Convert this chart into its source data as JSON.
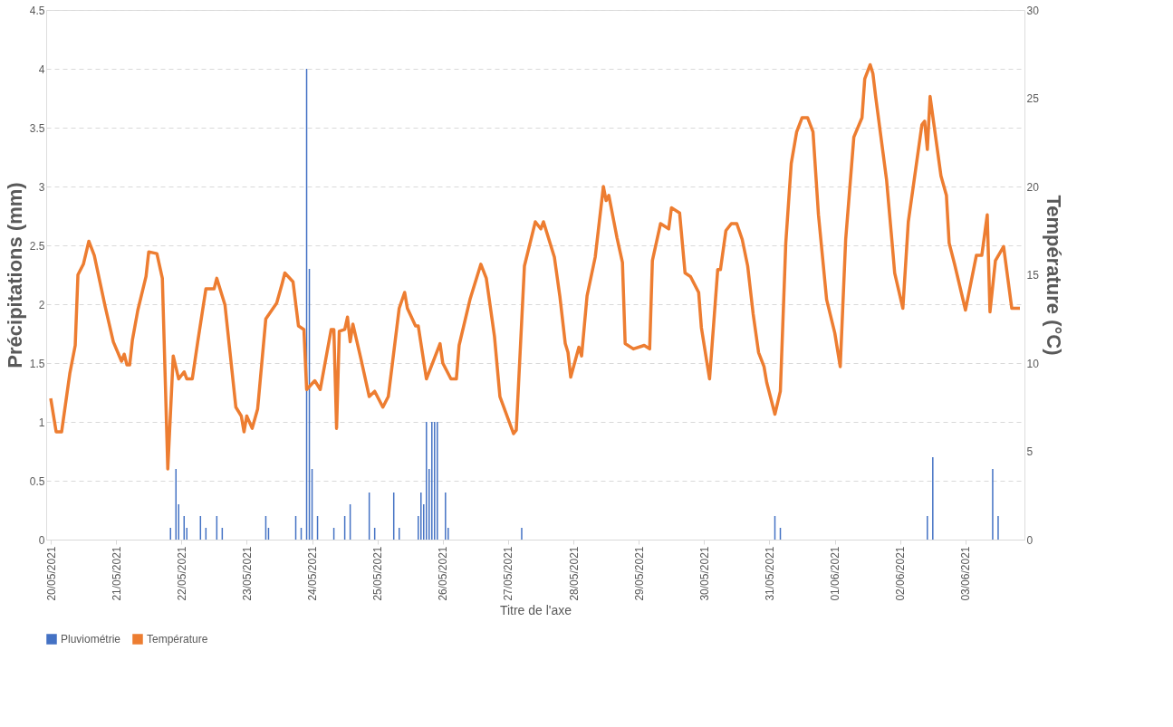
{
  "chart_data": {
    "type": "bar",
    "xlabel": "Titre de l'axe",
    "ylabel": "Précipitations (mm)",
    "y2label": "Température (°C)",
    "xlim": [
      "2021-05-20T00:00",
      "2021-06-03T20:00"
    ],
    "xticks": [
      {
        "value": "2021-05-20",
        "label": "20/05/2021"
      },
      {
        "value": "2021-05-21",
        "label": "21/05/2021"
      },
      {
        "value": "2021-05-22",
        "label": "22/05/2021"
      },
      {
        "value": "2021-05-23",
        "label": "23/05/2021"
      },
      {
        "value": "2021-05-24",
        "label": "24/05/2021"
      },
      {
        "value": "2021-05-25",
        "label": "25/05/2021"
      },
      {
        "value": "2021-05-26",
        "label": "26/05/2021"
      },
      {
        "value": "2021-05-27",
        "label": "27/05/2021"
      },
      {
        "value": "2021-05-28",
        "label": "28/05/2021"
      },
      {
        "value": "2021-05-29",
        "label": "29/05/2021"
      },
      {
        "value": "2021-05-30",
        "label": "30/05/2021"
      },
      {
        "value": "2021-05-31",
        "label": "31/05/2021"
      },
      {
        "value": "2021-06-01",
        "label": "01/06/2021"
      },
      {
        "value": "2021-06-02",
        "label": "02/06/2021"
      },
      {
        "value": "2021-06-03",
        "label": "03/06/2021"
      }
    ],
    "ylim": [
      0,
      4.5
    ],
    "yticks": [
      0,
      0.5,
      1,
      1.5,
      2,
      2.5,
      3,
      3.5,
      4,
      4.5
    ],
    "y2lim": [
      0,
      30
    ],
    "y2ticks": [
      0,
      5,
      10,
      15,
      20,
      25,
      30
    ],
    "grid": "y",
    "legend": "bottom",
    "marker": "none",
    "line_style": "solid",
    "series": [
      {
        "name": "Pluviométrie",
        "color": "#4472c4",
        "x": [
          "2021-05-21T20:00",
          "2021-05-21T22:00",
          "2021-05-21T23:00",
          "2021-05-22T01:00",
          "2021-05-22T02:00",
          "2021-05-22T07:00",
          "2021-05-22T09:00",
          "2021-05-22T13:00",
          "2021-05-22T15:00",
          "2021-05-23T07:00",
          "2021-05-23T08:00",
          "2021-05-23T18:00",
          "2021-05-23T20:00",
          "2021-05-23T22:00",
          "2021-05-23T23:00",
          "2021-05-24T00:00",
          "2021-05-24T02:00",
          "2021-05-24T08:00",
          "2021-05-24T12:00",
          "2021-05-24T14:00",
          "2021-05-24T21:00",
          "2021-05-24T23:00",
          "2021-05-25T06:00",
          "2021-05-25T08:00",
          "2021-05-25T15:00",
          "2021-05-25T16:00",
          "2021-05-25T17:00",
          "2021-05-25T18:00",
          "2021-05-25T19:00",
          "2021-05-25T20:00",
          "2021-05-25T21:00",
          "2021-05-25T22:00",
          "2021-05-26T01:00",
          "2021-05-26T02:00",
          "2021-05-27T05:00",
          "2021-05-31T02:00",
          "2021-05-31T04:00",
          "2021-06-02T10:00",
          "2021-06-02T12:00",
          "2021-06-03T10:00",
          "2021-06-03T12:00"
        ],
        "values": [
          0.1,
          0.6,
          0.3,
          0.2,
          0.1,
          0.2,
          0.1,
          0.2,
          0.1,
          0.2,
          0.1,
          0.2,
          0.1,
          4.0,
          2.3,
          0.6,
          0.2,
          0.1,
          0.2,
          0.3,
          0.4,
          0.1,
          0.4,
          0.1,
          0.2,
          0.4,
          0.3,
          1.0,
          0.6,
          1.0,
          1.0,
          1.0,
          0.4,
          0.1,
          0.1,
          0.2,
          0.1,
          0.2,
          0.7,
          0.6,
          0.2
        ]
      },
      {
        "name": "Température",
        "type": "line",
        "axis": "y2",
        "color": "#ed7d31",
        "x": [
          "2021-05-20T00:00",
          "2021-05-20T02:00",
          "2021-05-20T04:00",
          "2021-05-20T07:00",
          "2021-05-20T09:00",
          "2021-05-20T10:00",
          "2021-05-20T12:00",
          "2021-05-20T14:00",
          "2021-05-20T16:00",
          "2021-05-20T20:00",
          "2021-05-20T23:00",
          "2021-05-21T02:00",
          "2021-05-21T03:00",
          "2021-05-21T04:00",
          "2021-05-21T05:00",
          "2021-05-21T06:00",
          "2021-05-21T08:00",
          "2021-05-21T11:00",
          "2021-05-21T12:00",
          "2021-05-21T15:00",
          "2021-05-21T17:00",
          "2021-05-21T19:00",
          "2021-05-21T21:00",
          "2021-05-21T23:00",
          "2021-05-22T01:00",
          "2021-05-22T02:00",
          "2021-05-22T04:00",
          "2021-05-22T06:00",
          "2021-05-22T09:00",
          "2021-05-22T12:00",
          "2021-05-22T13:00",
          "2021-05-22T16:00",
          "2021-05-22T20:00",
          "2021-05-22T22:00",
          "2021-05-22T23:00",
          "2021-05-23T00:00",
          "2021-05-23T02:00",
          "2021-05-23T04:00",
          "2021-05-23T07:00",
          "2021-05-23T11:00",
          "2021-05-23T13:00",
          "2021-05-23T14:00",
          "2021-05-23T17:00",
          "2021-05-23T19:00",
          "2021-05-23T21:00",
          "2021-05-23T22:00",
          "2021-05-24T01:00",
          "2021-05-24T03:00",
          "2021-05-24T07:00",
          "2021-05-24T08:00",
          "2021-05-24T09:00",
          "2021-05-24T10:00",
          "2021-05-24T12:00",
          "2021-05-24T13:00",
          "2021-05-24T14:00",
          "2021-05-24T15:00",
          "2021-05-24T18:00",
          "2021-05-24T21:00",
          "2021-05-24T23:00",
          "2021-05-25T02:00",
          "2021-05-25T04:00",
          "2021-05-25T08:00",
          "2021-05-25T10:00",
          "2021-05-25T11:00",
          "2021-05-25T14:00",
          "2021-05-25T15:00",
          "2021-05-25T18:00",
          "2021-05-25T23:00",
          "2021-05-26T00:00",
          "2021-05-26T03:00",
          "2021-05-26T05:00",
          "2021-05-26T06:00",
          "2021-05-26T10:00",
          "2021-05-26T14:00",
          "2021-05-26T16:00",
          "2021-05-26T19:00",
          "2021-05-26T21:00",
          "2021-05-27T02:00",
          "2021-05-27T03:00",
          "2021-05-27T06:00",
          "2021-05-27T10:00",
          "2021-05-27T12:00",
          "2021-05-27T13:00",
          "2021-05-27T17:00",
          "2021-05-27T19:00",
          "2021-05-27T21:00",
          "2021-05-27T22:00",
          "2021-05-27T23:00",
          "2021-05-28T02:00",
          "2021-05-28T03:00",
          "2021-05-28T05:00",
          "2021-05-28T08:00",
          "2021-05-28T11:00",
          "2021-05-28T12:00",
          "2021-05-28T13:00",
          "2021-05-28T16:00",
          "2021-05-28T18:00",
          "2021-05-28T19:00",
          "2021-05-28T22:00",
          "2021-05-29T02:00",
          "2021-05-29T04:00",
          "2021-05-29T05:00",
          "2021-05-29T08:00",
          "2021-05-29T11:00",
          "2021-05-29T12:00",
          "2021-05-29T15:00",
          "2021-05-29T17:00",
          "2021-05-29T19:00",
          "2021-05-29T22:00",
          "2021-05-29T23:00",
          "2021-05-30T02:00",
          "2021-05-30T05:00",
          "2021-05-30T06:00",
          "2021-05-30T08:00",
          "2021-05-30T10:00",
          "2021-05-30T12:00",
          "2021-05-30T14:00",
          "2021-05-30T16:00",
          "2021-05-30T18:00",
          "2021-05-30T20:00",
          "2021-05-30T22:00",
          "2021-05-30T23:00",
          "2021-05-31T02:00",
          "2021-05-31T04:00",
          "2021-05-31T06:00",
          "2021-05-31T08:00",
          "2021-05-31T10:00",
          "2021-05-31T12:00",
          "2021-05-31T14:00",
          "2021-05-31T16:00",
          "2021-05-31T18:00",
          "2021-05-31T21:00",
          "2021-06-01T00:00",
          "2021-06-01T02:00",
          "2021-06-01T04:00",
          "2021-06-01T07:00",
          "2021-06-01T10:00",
          "2021-06-01T11:00",
          "2021-06-01T13:00",
          "2021-06-01T14:00",
          "2021-06-01T15:00",
          "2021-06-01T19:00",
          "2021-06-01T21:00",
          "2021-06-01T22:00",
          "2021-06-02T01:00",
          "2021-06-02T03:00",
          "2021-06-02T08:00",
          "2021-06-02T09:00",
          "2021-06-02T10:00",
          "2021-06-02T11:00",
          "2021-06-02T15:00",
          "2021-06-02T17:00",
          "2021-06-02T18:00",
          "2021-06-02T20:00",
          "2021-06-03T00:00",
          "2021-06-03T04:00",
          "2021-06-03T06:00",
          "2021-06-03T08:00",
          "2021-06-03T09:00",
          "2021-06-03T11:00",
          "2021-06-03T14:00",
          "2021-06-03T17:00",
          "2021-06-03T20:00"
        ],
        "values": [
          8.0,
          6.1,
          6.1,
          9.4,
          11.0,
          15.0,
          15.6,
          16.9,
          16.1,
          13.2,
          11.2,
          10.1,
          10.5,
          9.9,
          9.9,
          11.3,
          13.0,
          14.9,
          16.3,
          16.2,
          14.8,
          4.0,
          10.4,
          9.1,
          9.5,
          9.1,
          9.1,
          11.2,
          14.2,
          14.2,
          14.8,
          13.3,
          7.5,
          7.0,
          6.1,
          7.0,
          6.3,
          7.4,
          12.5,
          13.4,
          14.5,
          15.1,
          14.6,
          12.1,
          11.9,
          8.5,
          9.0,
          8.5,
          11.9,
          11.9,
          6.3,
          11.8,
          11.9,
          12.6,
          11.2,
          12.2,
          10.2,
          8.1,
          8.4,
          7.5,
          8.1,
          13.1,
          14.0,
          13.1,
          12.1,
          12.1,
          9.1,
          11.1,
          10.0,
          9.1,
          9.1,
          11.0,
          13.6,
          15.6,
          14.8,
          11.5,
          8.1,
          6.0,
          6.2,
          15.5,
          18.0,
          17.6,
          18.0,
          16.0,
          13.8,
          11.1,
          10.6,
          9.2,
          10.9,
          10.4,
          13.8,
          16.0,
          20.0,
          19.2,
          19.5,
          17.1,
          15.7,
          11.1,
          10.8,
          11.0,
          10.8,
          15.8,
          17.9,
          17.6,
          18.8,
          18.5,
          15.1,
          14.9,
          14.0,
          12.0,
          9.1,
          15.3,
          15.3,
          17.5,
          17.9,
          17.9,
          17.0,
          15.5,
          12.8,
          10.6,
          9.8,
          8.9,
          7.1,
          8.4,
          16.8,
          21.3,
          23.1,
          23.9,
          23.9,
          23.1,
          18.4,
          13.6,
          11.7,
          9.8,
          17.0,
          22.8,
          23.9,
          26.1,
          26.9,
          26.4,
          25.1,
          20.4,
          16.9,
          15.1,
          13.1,
          18.0,
          23.5,
          23.7,
          22.1,
          25.1,
          20.6,
          19.5,
          16.8,
          15.6,
          13.0,
          16.1,
          16.1,
          18.4,
          12.9,
          15.8,
          16.6,
          13.1,
          13.1
        ]
      }
    ]
  }
}
